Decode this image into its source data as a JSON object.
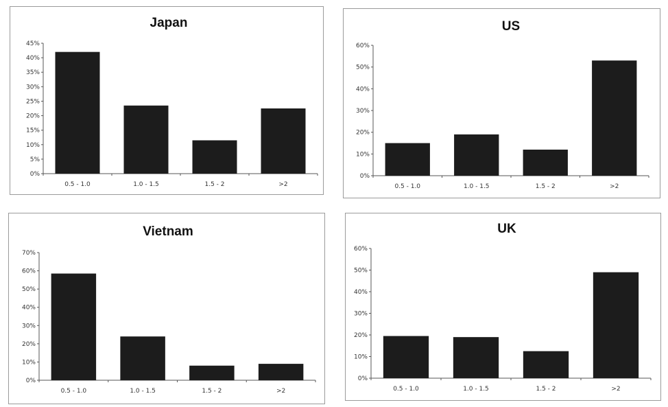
{
  "chart_data": [
    {
      "id": "japan",
      "type": "bar",
      "title": "Japan",
      "categories": [
        "0.5 - 1.0",
        "1.0 - 1.5",
        "1.5 - 2",
        ">2"
      ],
      "values": [
        42,
        23.5,
        11.5,
        22.5
      ],
      "ylim": [
        0,
        45
      ],
      "yticks": [
        0,
        5,
        10,
        15,
        20,
        25,
        30,
        35,
        40,
        45
      ],
      "ytick_labels": [
        "0%",
        "5%",
        "10%",
        "15%",
        "20%",
        "25%",
        "30%",
        "35%",
        "40%",
        "45%"
      ],
      "unit": "%",
      "bar_color": "#1c1c1c",
      "grid": false,
      "legend": "none"
    },
    {
      "id": "us",
      "type": "bar",
      "title": "US",
      "categories": [
        "0.5 - 1.0",
        "1.0 - 1.5",
        "1.5 - 2",
        ">2"
      ],
      "values": [
        15,
        19,
        12,
        53
      ],
      "ylim": [
        0,
        60
      ],
      "yticks": [
        0,
        10,
        20,
        30,
        40,
        50,
        60
      ],
      "ytick_labels": [
        "0%",
        "10%",
        "20%",
        "30%",
        "40%",
        "50%",
        "60%"
      ],
      "unit": "%",
      "bar_color": "#1c1c1c",
      "grid": false,
      "legend": "none"
    },
    {
      "id": "vietnam",
      "type": "bar",
      "title": "Vietnam",
      "categories": [
        "0.5 - 1.0",
        "1.0 - 1.5",
        "1.5 - 2",
        ">2"
      ],
      "values": [
        58.5,
        24,
        8,
        9
      ],
      "ylim": [
        0,
        70
      ],
      "yticks": [
        0,
        10,
        20,
        30,
        40,
        50,
        60,
        70
      ],
      "ytick_labels": [
        "0%",
        "10%",
        "20%",
        "30%",
        "40%",
        "50%",
        "60%",
        "70%"
      ],
      "unit": "%",
      "bar_color": "#1c1c1c",
      "grid": false,
      "legend": "none"
    },
    {
      "id": "uk",
      "type": "bar",
      "title": "UK",
      "categories": [
        "0.5 - 1.0",
        "1.0 - 1.5",
        "1.5 - 2",
        ">2"
      ],
      "values": [
        19.5,
        19,
        12.5,
        49
      ],
      "ylim": [
        0,
        60
      ],
      "yticks": [
        0,
        10,
        20,
        30,
        40,
        50,
        60
      ],
      "ytick_labels": [
        "0%",
        "10%",
        "20%",
        "30%",
        "40%",
        "50%",
        "60%"
      ],
      "unit": "%",
      "bar_color": "#1c1c1c",
      "grid": false,
      "legend": "none"
    }
  ]
}
